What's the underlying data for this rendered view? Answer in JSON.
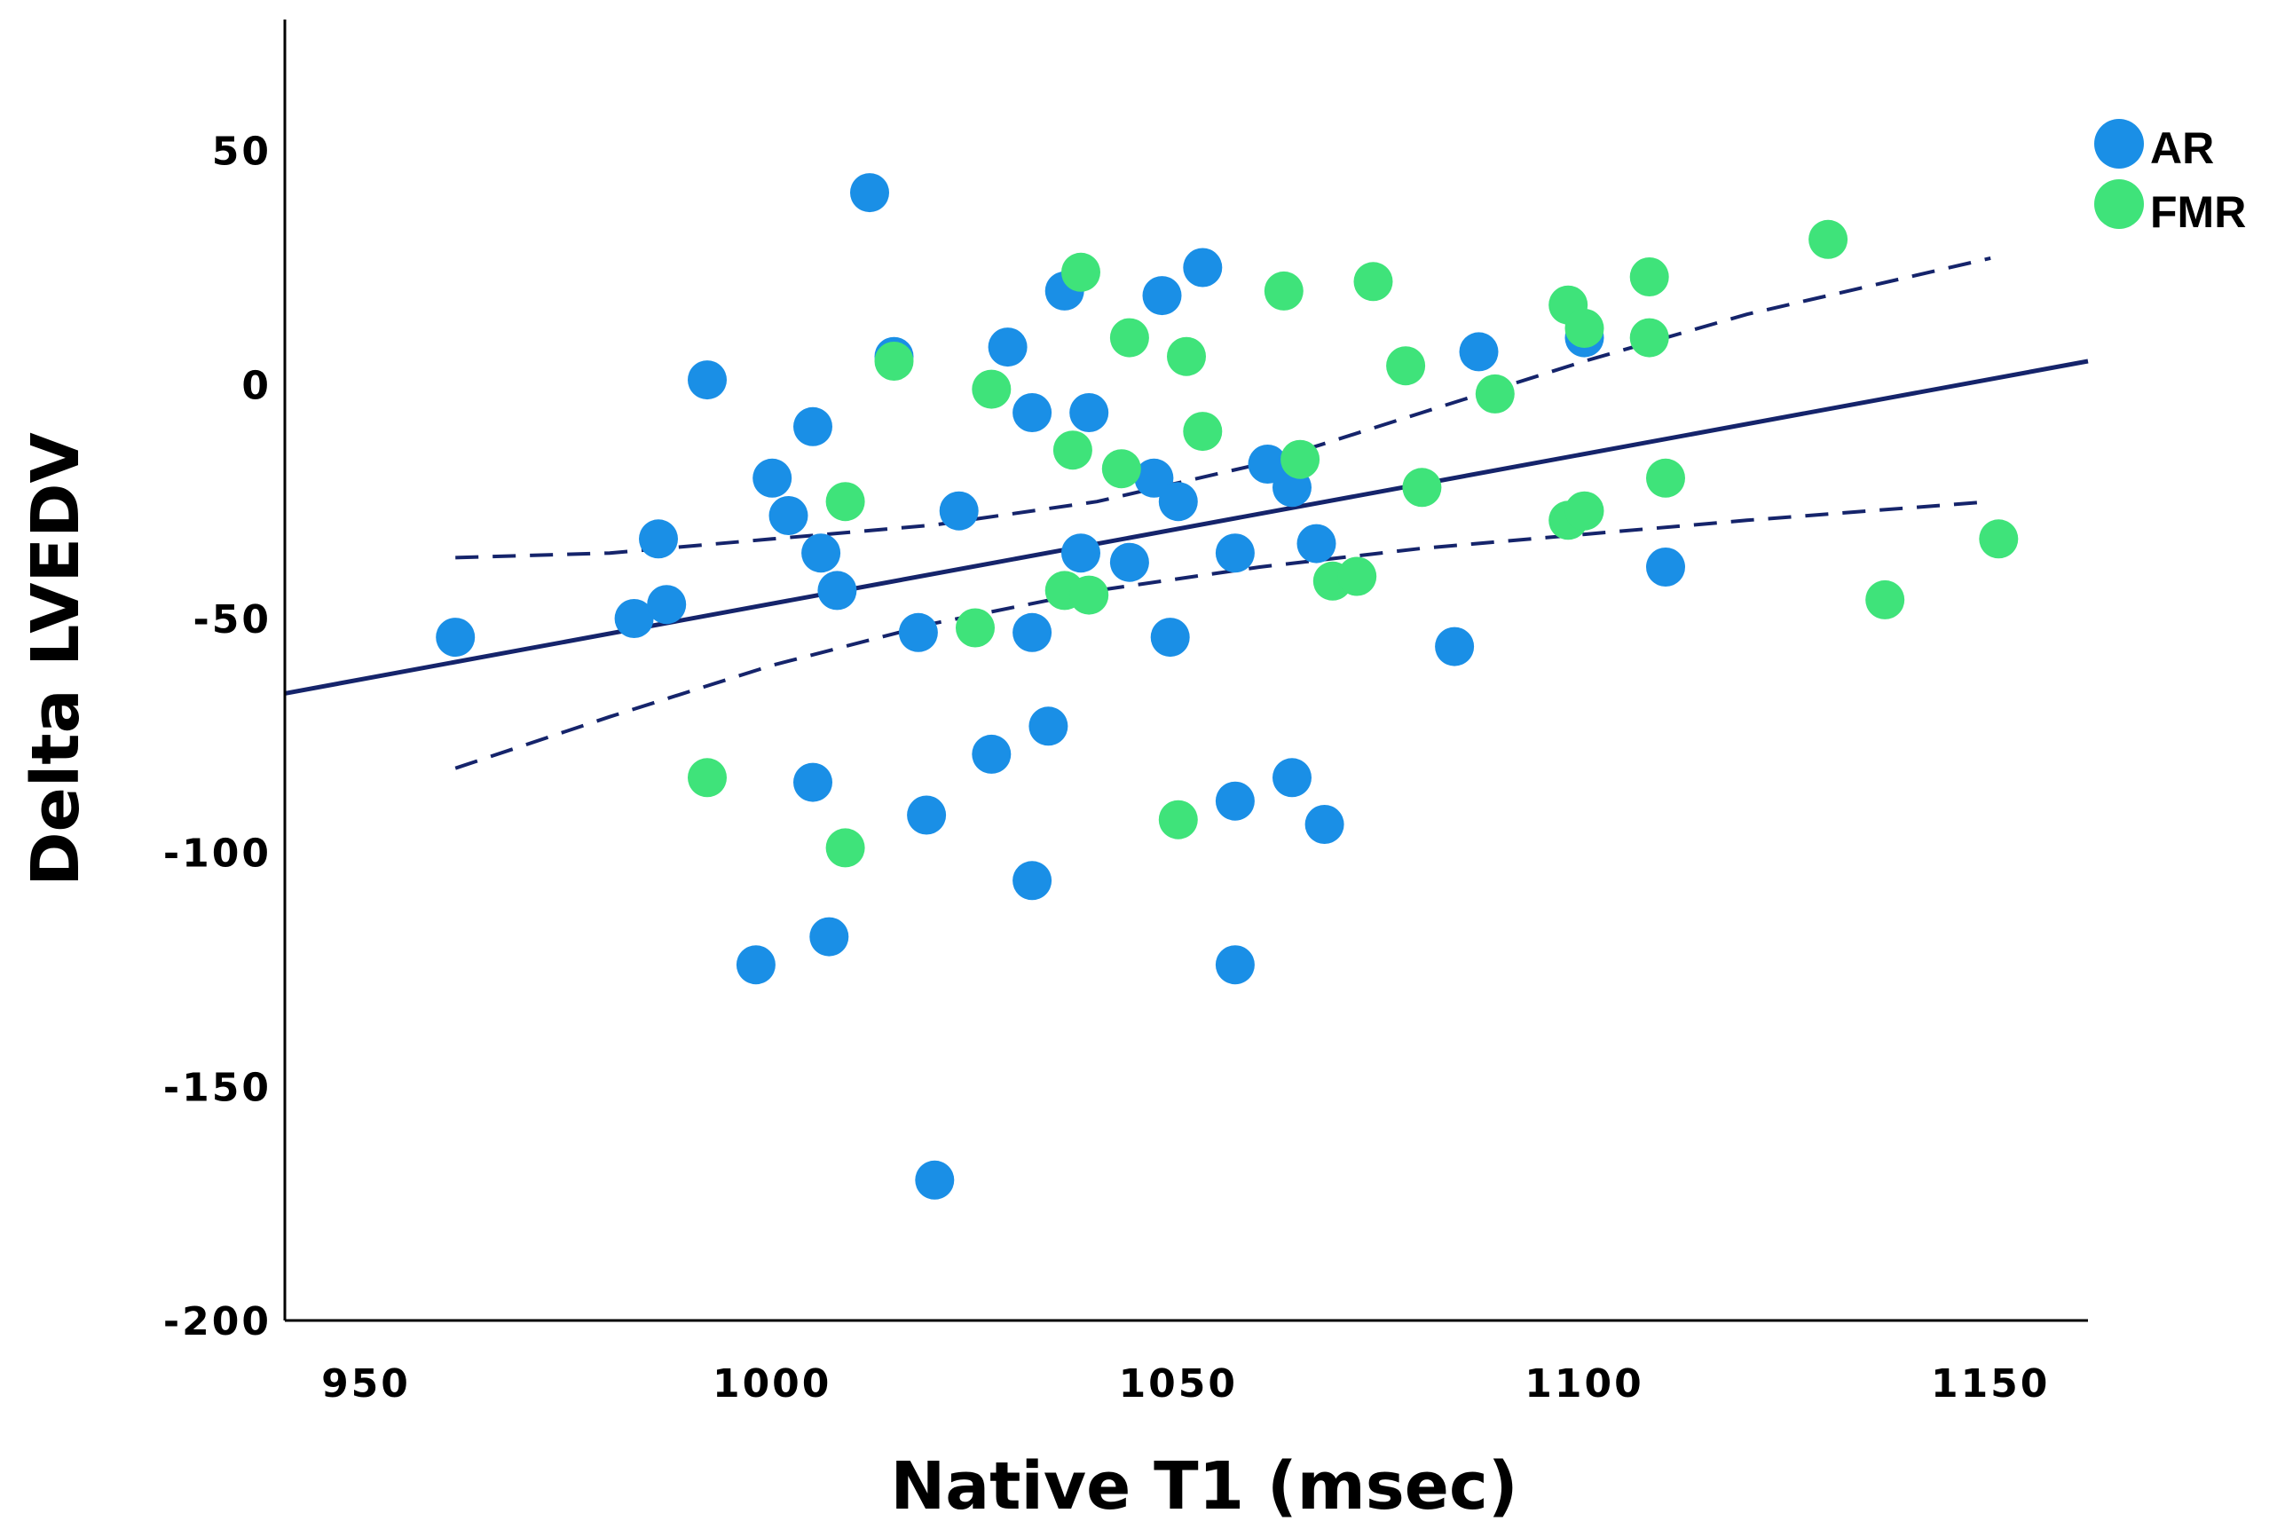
{
  "chart_data": {
    "type": "scatter",
    "title": "",
    "xlabel": "Native T1 (msec)",
    "ylabel": "Delta LVEDV",
    "xlim": [
      940,
      1162
    ],
    "ylim": [
      -200,
      78
    ],
    "x_ticks": [
      950,
      1000,
      1050,
      1100,
      1150
    ],
    "y_ticks": [
      50,
      0,
      -50,
      -100,
      -150,
      -200
    ],
    "x_tick_labels": [
      "950",
      "1000",
      "1050",
      "1100",
      "1150"
    ],
    "y_tick_labels": [
      "50",
      "0",
      "-50",
      "-100",
      "-150",
      "-200"
    ],
    "legend_position": "top-right",
    "series": [
      {
        "name": "AR",
        "color": "#1a8fe6",
        "points": [
          [
            961,
            -54
          ],
          [
            983,
            -50
          ],
          [
            986,
            -33
          ],
          [
            987,
            -47
          ],
          [
            992,
            1
          ],
          [
            998,
            -124
          ],
          [
            1000,
            -20
          ],
          [
            1002,
            -28
          ],
          [
            1005,
            -9
          ],
          [
            1005,
            -85
          ],
          [
            1006,
            -36
          ],
          [
            1007,
            -118
          ],
          [
            1008,
            -44
          ],
          [
            1012,
            41
          ],
          [
            1015,
            6
          ],
          [
            1018,
            -53
          ],
          [
            1019,
            -92
          ],
          [
            1020,
            -170
          ],
          [
            1023,
            -27
          ],
          [
            1027,
            -79
          ],
          [
            1029,
            8
          ],
          [
            1032,
            -6
          ],
          [
            1032,
            -53
          ],
          [
            1032,
            -106
          ],
          [
            1034,
            -73
          ],
          [
            1036,
            20
          ],
          [
            1038,
            -36
          ],
          [
            1039,
            -6
          ],
          [
            1044,
            -38
          ],
          [
            1047,
            -20
          ],
          [
            1048,
            19
          ],
          [
            1049,
            -54
          ],
          [
            1050,
            -25
          ],
          [
            1053,
            25
          ],
          [
            1057,
            -36
          ],
          [
            1057,
            -89
          ],
          [
            1057,
            -124
          ],
          [
            1061,
            -17
          ],
          [
            1064,
            -22
          ],
          [
            1064,
            -84
          ],
          [
            1067,
            -34
          ],
          [
            1068,
            -94
          ],
          [
            1084,
            -56
          ],
          [
            1087,
            7
          ],
          [
            1100,
            10
          ],
          [
            1110,
            -39
          ]
        ]
      },
      {
        "name": "FMR",
        "color": "#3fe37a",
        "points": [
          [
            992,
            -84
          ],
          [
            1009,
            -25
          ],
          [
            1009,
            -99
          ],
          [
            1015,
            5
          ],
          [
            1025,
            -52
          ],
          [
            1027,
            -1
          ],
          [
            1036,
            -44
          ],
          [
            1037,
            -14
          ],
          [
            1038,
            24
          ],
          [
            1039,
            -45
          ],
          [
            1043,
            -18
          ],
          [
            1044,
            10
          ],
          [
            1050,
            -93
          ],
          [
            1051,
            6
          ],
          [
            1053,
            -10
          ],
          [
            1063,
            20
          ],
          [
            1065,
            -16
          ],
          [
            1069,
            -42
          ],
          [
            1072,
            -41
          ],
          [
            1074,
            22
          ],
          [
            1078,
            4
          ],
          [
            1080,
            -22
          ],
          [
            1089,
            -2
          ],
          [
            1098,
            17
          ],
          [
            1098,
            -29
          ],
          [
            1100,
            12
          ],
          [
            1100,
            -27
          ],
          [
            1108,
            23
          ],
          [
            1108,
            10
          ],
          [
            1110,
            -20
          ],
          [
            1130,
            31
          ],
          [
            1137,
            -46
          ],
          [
            1151,
            -33
          ]
        ]
      }
    ],
    "lines": [
      {
        "name": "fit",
        "style": "solid",
        "color": "#15246b",
        "points": [
          [
            940,
            -66
          ],
          [
            1162,
            5
          ]
        ]
      },
      {
        "name": "ci-upper",
        "style": "dashed",
        "color": "#15246b",
        "points": [
          [
            961,
            -37
          ],
          [
            980,
            -36
          ],
          [
            1000,
            -33
          ],
          [
            1020,
            -30
          ],
          [
            1040,
            -25
          ],
          [
            1060,
            -17
          ],
          [
            1080,
            -6
          ],
          [
            1100,
            5
          ],
          [
            1120,
            15
          ],
          [
            1150,
            27
          ]
        ]
      },
      {
        "name": "ci-lower",
        "style": "dashed",
        "color": "#15246b",
        "points": [
          [
            961,
            -82
          ],
          [
            980,
            -71
          ],
          [
            1000,
            -60
          ],
          [
            1020,
            -51
          ],
          [
            1040,
            -44
          ],
          [
            1060,
            -39
          ],
          [
            1080,
            -35
          ],
          [
            1100,
            -32
          ],
          [
            1120,
            -29
          ],
          [
            1150,
            -25
          ]
        ]
      }
    ]
  }
}
